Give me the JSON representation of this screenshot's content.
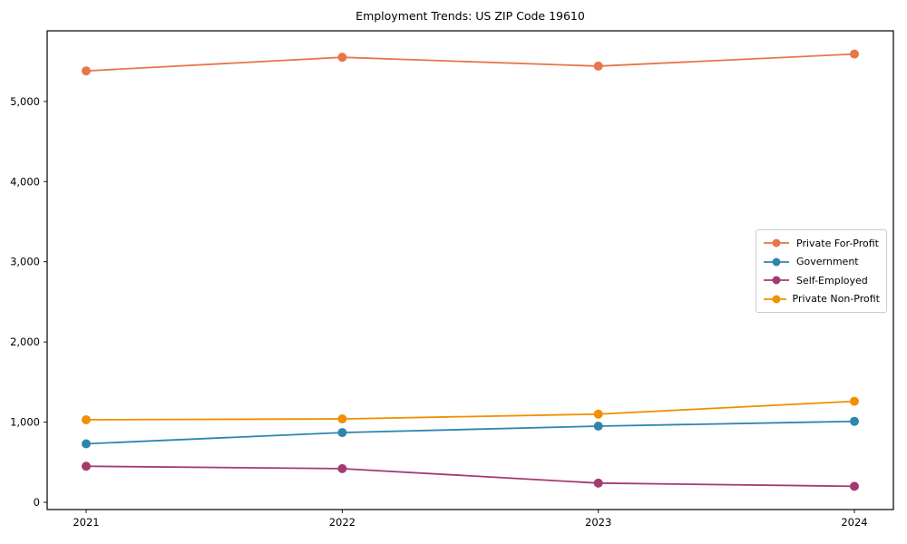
{
  "chart_data": {
    "type": "line",
    "title": "Employment Trends: US ZIP Code 19610",
    "xlabel": "",
    "ylabel": "",
    "x": [
      2021,
      2022,
      2023,
      2024
    ],
    "x_tick_labels": [
      "2021",
      "2022",
      "2023",
      "2024"
    ],
    "y_ticks": [
      0,
      1000,
      2000,
      3000,
      4000,
      5000
    ],
    "y_tick_labels": [
      "0",
      "1,000",
      "2,000",
      "3,000",
      "4,000",
      "5,000"
    ],
    "ylim": [
      -90,
      5880
    ],
    "grid": false,
    "marker": "circle",
    "legend_position": "center right",
    "frame_color": "#000000",
    "background_color": "#ffffff",
    "series": [
      {
        "name": "Private For-Profit",
        "color": "#E8764B",
        "values": [
          5380,
          5550,
          5440,
          5590
        ]
      },
      {
        "name": "Government",
        "color": "#2E86AB",
        "values": [
          730,
          870,
          950,
          1010
        ]
      },
      {
        "name": "Self-Employed",
        "color": "#A23B72",
        "values": [
          450,
          420,
          240,
          200
        ]
      },
      {
        "name": "Private Non-Profit",
        "color": "#F18F01",
        "values": [
          1030,
          1040,
          1100,
          1260
        ]
      }
    ]
  }
}
